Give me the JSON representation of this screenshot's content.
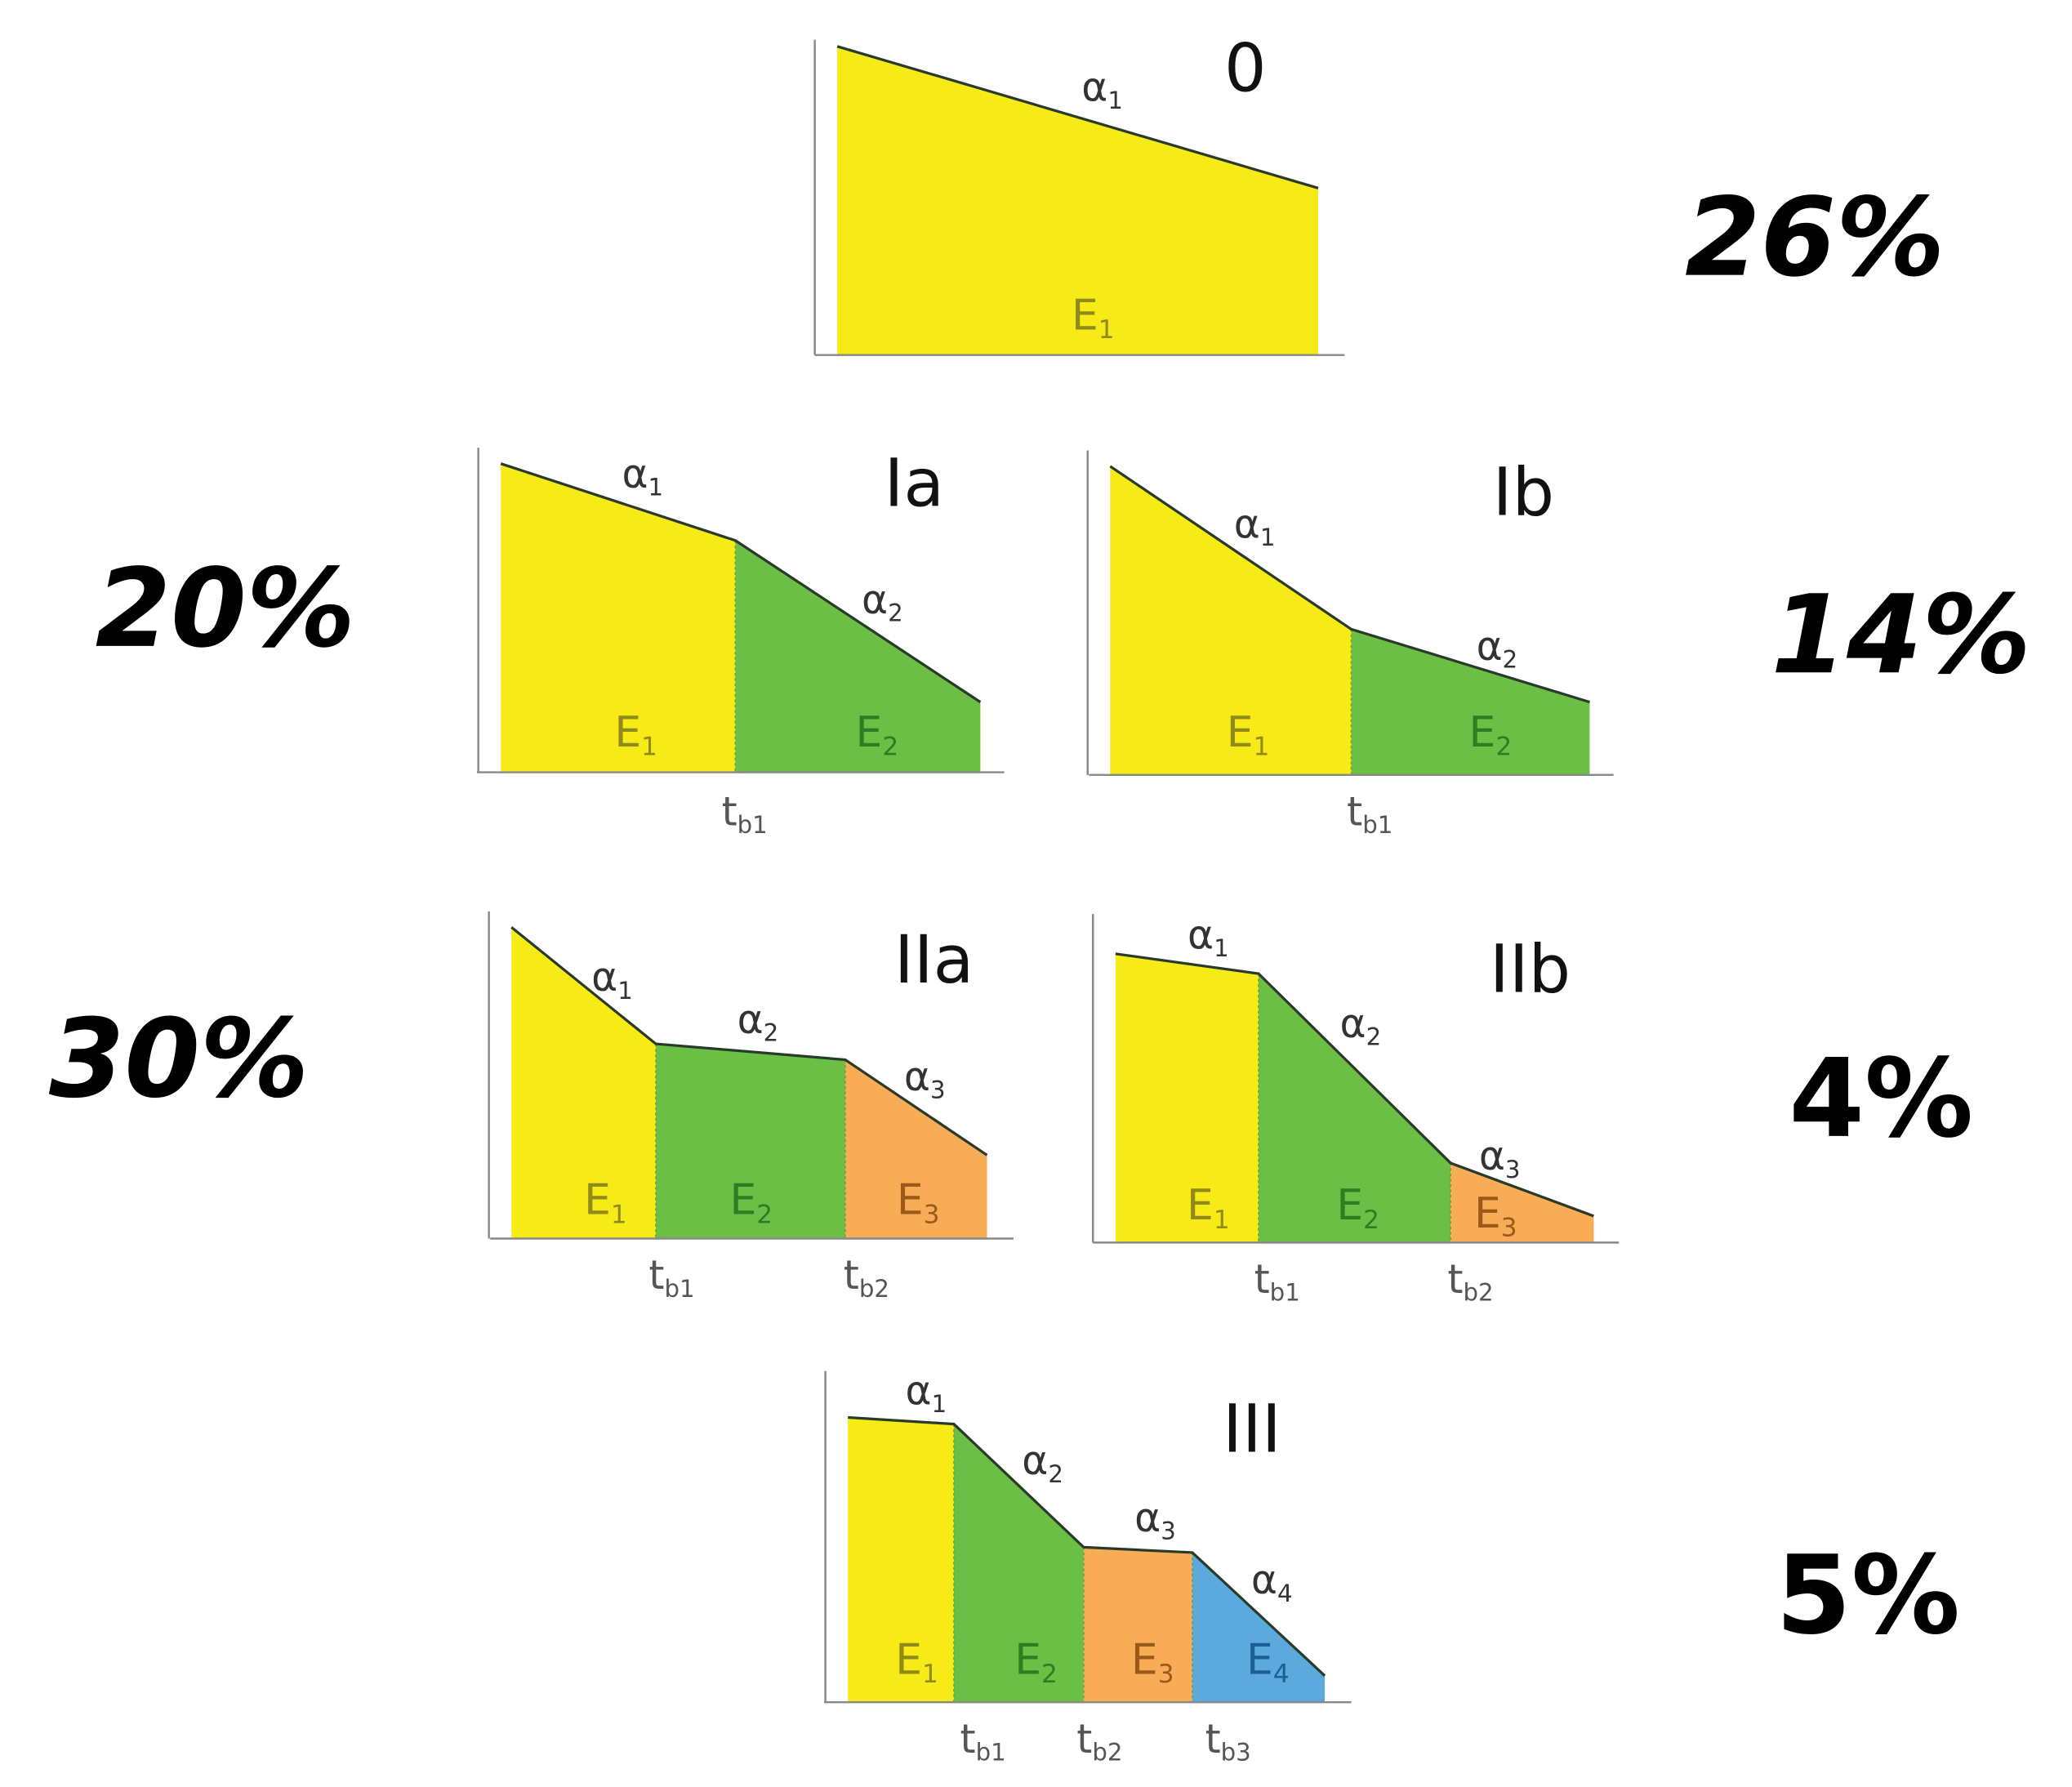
{
  "panels": [
    {
      "label": "0",
      "percent": "26%",
      "alphas": [
        {
          "main": "α",
          "sub": "1"
        }
      ],
      "energies": [
        {
          "main": "E",
          "sub": "1"
        }
      ],
      "breaks": []
    },
    {
      "label": "Ia",
      "percent": "20%",
      "alphas": [
        {
          "main": "α",
          "sub": "1"
        },
        {
          "main": "α",
          "sub": "2"
        }
      ],
      "energies": [
        {
          "main": "E",
          "sub": "1"
        },
        {
          "main": "E",
          "sub": "2"
        }
      ],
      "breaks": [
        {
          "main": "t",
          "sub": "b1"
        }
      ]
    },
    {
      "label": "Ib",
      "percent": "14%",
      "alphas": [
        {
          "main": "α",
          "sub": "1"
        },
        {
          "main": "α",
          "sub": "2"
        }
      ],
      "energies": [
        {
          "main": "E",
          "sub": "1"
        },
        {
          "main": "E",
          "sub": "2"
        }
      ],
      "breaks": [
        {
          "main": "t",
          "sub": "b1"
        }
      ]
    },
    {
      "label": "IIa",
      "percent": "30%",
      "alphas": [
        {
          "main": "α",
          "sub": "1"
        },
        {
          "main": "α",
          "sub": "2"
        },
        {
          "main": "α",
          "sub": "3"
        }
      ],
      "energies": [
        {
          "main": "E",
          "sub": "1"
        },
        {
          "main": "E",
          "sub": "2"
        },
        {
          "main": "E",
          "sub": "3"
        }
      ],
      "breaks": [
        {
          "main": "t",
          "sub": "b1"
        },
        {
          "main": "t",
          "sub": "b2"
        }
      ]
    },
    {
      "label": "IIb",
      "percent": "4%",
      "alphas": [
        {
          "main": "α",
          "sub": "1"
        },
        {
          "main": "α",
          "sub": "2"
        },
        {
          "main": "α",
          "sub": "3"
        }
      ],
      "energies": [
        {
          "main": "E",
          "sub": "1"
        },
        {
          "main": "E",
          "sub": "2"
        },
        {
          "main": "E",
          "sub": "3"
        }
      ],
      "breaks": [
        {
          "main": "t",
          "sub": "b1"
        },
        {
          "main": "t",
          "sub": "b2"
        }
      ]
    },
    {
      "label": "III",
      "percent": "5%",
      "alphas": [
        {
          "main": "α",
          "sub": "1"
        },
        {
          "main": "α",
          "sub": "2"
        },
        {
          "main": "α",
          "sub": "3"
        },
        {
          "main": "α",
          "sub": "4"
        }
      ],
      "energies": [
        {
          "main": "E",
          "sub": "1"
        },
        {
          "main": "E",
          "sub": "2"
        },
        {
          "main": "E",
          "sub": "3"
        },
        {
          "main": "E",
          "sub": "4"
        }
      ],
      "breaks": [
        {
          "main": "t",
          "sub": "b1"
        },
        {
          "main": "t",
          "sub": "b2"
        },
        {
          "main": "t",
          "sub": "b3"
        }
      ]
    }
  ]
}
